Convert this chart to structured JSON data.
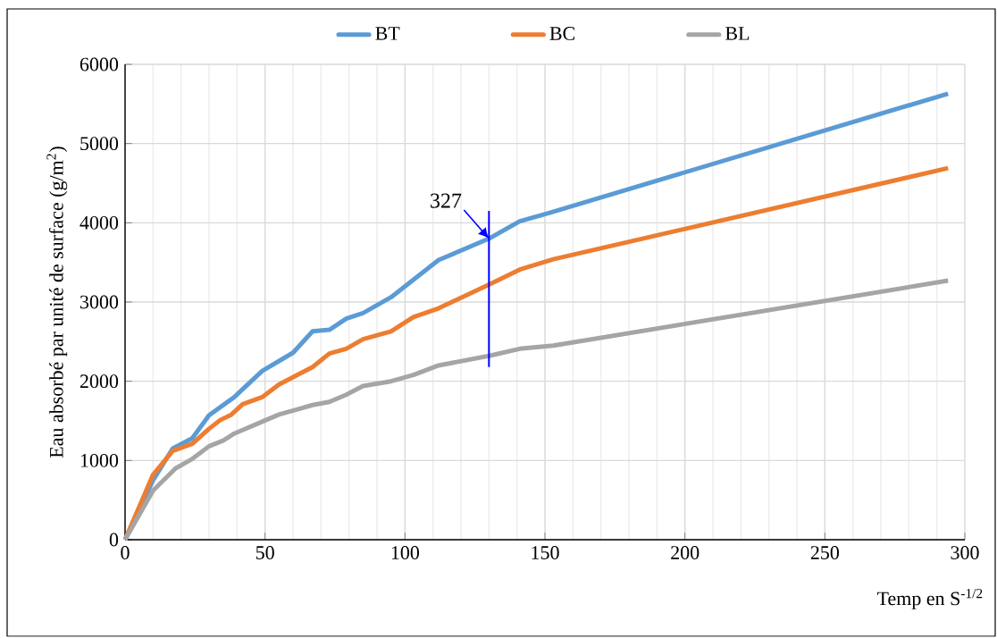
{
  "chart_data": {
    "type": "line",
    "xlabel": "Temp en S$^{-1/2}$",
    "ylabel": "Eau absorbé par unité de surface (g/m$^{2}$)",
    "xlim": [
      0,
      300
    ],
    "xticks": [
      0,
      50,
      100,
      150,
      200,
      250,
      300
    ],
    "ylim": [
      0,
      6000
    ],
    "yticks": [
      0,
      1000,
      2000,
      3000,
      4000,
      5000,
      6000
    ],
    "grid": true,
    "legend": "top",
    "annotations": [
      {
        "text": "327",
        "x": 130,
        "y": 3800
      }
    ],
    "series": [
      {
        "name": "BT",
        "color": "#5b9bd5",
        "x": [
          0,
          10,
          17,
          24,
          30,
          39,
          49,
          60,
          67,
          73,
          79,
          85,
          95,
          112,
          130,
          141,
          152,
          294
        ],
        "values": [
          0,
          750,
          1150,
          1280,
          1570,
          1800,
          2130,
          2360,
          2630,
          2650,
          2790,
          2860,
          3060,
          3530,
          3800,
          4020,
          4130,
          5630
        ]
      },
      {
        "name": "BC",
        "color": "#ed7d31",
        "x": [
          0,
          10,
          17,
          24,
          30,
          34,
          38,
          42,
          49,
          55,
          61,
          67,
          73,
          79,
          85,
          95,
          103,
          112,
          130,
          141,
          153,
          294
        ],
        "values": [
          0,
          820,
          1120,
          1210,
          1400,
          1510,
          1580,
          1710,
          1800,
          1960,
          2070,
          2180,
          2350,
          2410,
          2530,
          2630,
          2810,
          2920,
          3220,
          3410,
          3540,
          4690
        ]
      },
      {
        "name": "BL",
        "color": "#a5a5a5",
        "x": [
          0,
          10,
          18,
          24,
          30,
          35,
          39,
          49,
          55,
          61,
          67,
          73,
          79,
          85,
          95,
          103,
          112,
          130,
          141,
          153,
          294
        ],
        "values": [
          0,
          620,
          900,
          1020,
          1180,
          1250,
          1340,
          1490,
          1580,
          1640,
          1700,
          1740,
          1830,
          1940,
          2000,
          2080,
          2200,
          2320,
          2410,
          2450,
          3270
        ]
      },
      {
        "color": "#0000ff",
        "x": [
          130,
          130
        ],
        "values": [
          2180,
          4150
        ]
      }
    ]
  }
}
